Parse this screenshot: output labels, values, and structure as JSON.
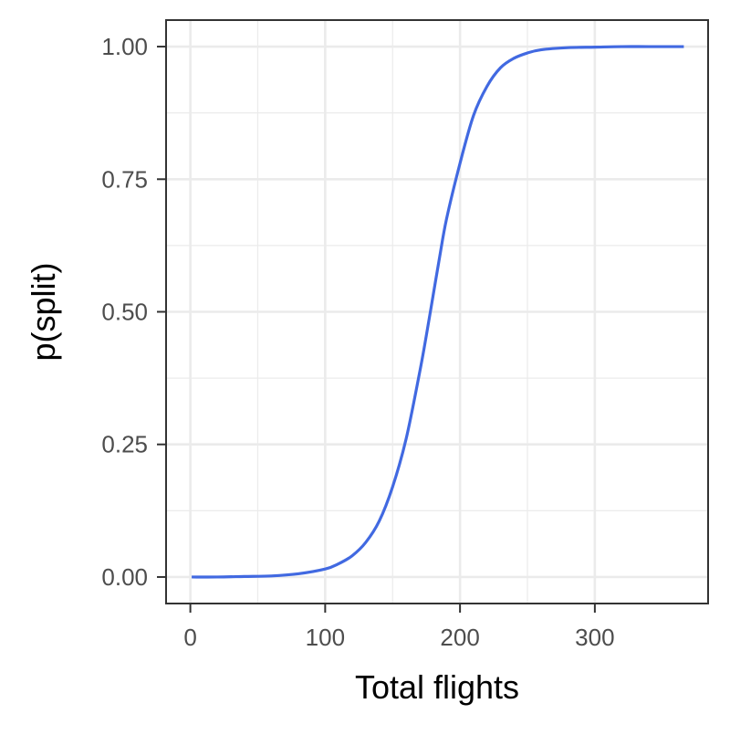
{
  "chart_data": {
    "type": "line",
    "title": "",
    "xlabel": "Total flights",
    "ylabel": "p(split)",
    "xlim": [
      -18,
      384
    ],
    "ylim": [
      -0.05,
      1.05
    ],
    "grid": true,
    "x_ticks": [
      0,
      100,
      200,
      300
    ],
    "x_tick_labels": [
      "0",
      "100",
      "200",
      "300"
    ],
    "y_ticks": [
      0,
      0.25,
      0.5,
      0.75,
      1.0
    ],
    "y_tick_labels": [
      "0.00",
      "0.25",
      "0.50",
      "0.75",
      "1.00"
    ],
    "series": [
      {
        "color": "#4169E1",
        "x": [
          1,
          20,
          40,
          60,
          80,
          100,
          110,
          120,
          130,
          140,
          150,
          160,
          170,
          175,
          180,
          185,
          190,
          200,
          210,
          220,
          230,
          240,
          250,
          260,
          280,
          300,
          320,
          340,
          366
        ],
        "y": [
          0.0,
          0.0,
          0.001,
          0.002,
          0.006,
          0.015,
          0.025,
          0.04,
          0.065,
          0.105,
          0.17,
          0.26,
          0.385,
          0.455,
          0.53,
          0.605,
          0.675,
          0.78,
          0.87,
          0.925,
          0.96,
          0.978,
          0.988,
          0.994,
          0.998,
          0.999,
          1.0,
          1.0,
          1.0
        ]
      }
    ]
  }
}
